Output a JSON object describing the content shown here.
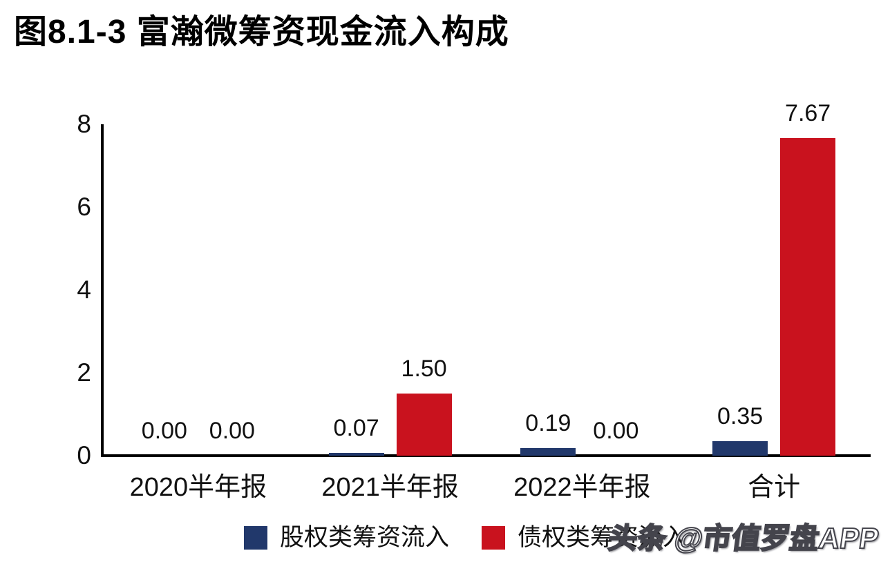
{
  "title": "图8.1-3 富瀚微筹资现金流入构成",
  "watermark": "头条 @市值罗盘APP",
  "colors": {
    "equity_series": "#21386B",
    "debt_series": "#C9121E",
    "axis": "#000000",
    "text": "#111111",
    "background": "#ffffff"
  },
  "chart_data": {
    "type": "bar",
    "title": "图8.1-3 富瀚微筹资现金流入构成",
    "categories": [
      "2020半年报",
      "2021半年报",
      "2022半年报",
      "合计"
    ],
    "series": [
      {
        "name": "股权类筹资流入",
        "color": "#21386B",
        "values": [
          0.0,
          0.07,
          0.19,
          0.35
        ]
      },
      {
        "name": "债权类筹资流入",
        "color": "#C9121E",
        "values": [
          0.0,
          1.5,
          0.0,
          7.67
        ]
      }
    ],
    "xlabel": "",
    "ylabel": "",
    "ylim": [
      0,
      8
    ],
    "yticks": [
      0,
      2,
      4,
      6,
      8
    ],
    "grid": false,
    "legend_position": "bottom",
    "value_label_decimals": 2
  }
}
